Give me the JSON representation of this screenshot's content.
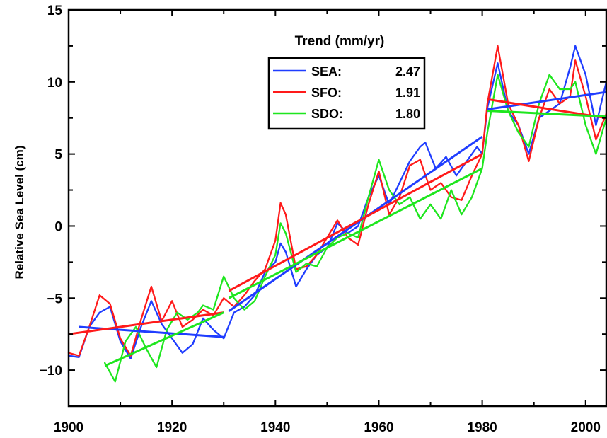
{
  "chart_data": {
    "type": "line",
    "title": "",
    "xlabel": "",
    "ylabel": "Relative Sea Level (cm)",
    "xlim": [
      1900,
      2004
    ],
    "ylim": [
      -12.5,
      15
    ],
    "x_ticks": [
      1900,
      1920,
      1940,
      1960,
      1980,
      2000
    ],
    "y_ticks": [
      -10,
      -5,
      0,
      5,
      10,
      15
    ],
    "y_tick_labels": [
      "−10",
      "−5",
      "0",
      "5",
      "10",
      "15"
    ],
    "grid": false,
    "legend": {
      "title": "Trend  (mm/yr)",
      "placement": "top-center",
      "entries": [
        {
          "name": "SEA:",
          "value": "2.47",
          "color": "#1f3dff"
        },
        {
          "name": "SFO:",
          "value": "1.91",
          "color": "#ff1a1a"
        },
        {
          "name": "SDO:",
          "value": "1.80",
          "color": "#1ee61e"
        }
      ]
    },
    "series": [
      {
        "name": "SEA",
        "color": "#1f3dff",
        "x": [
          1900,
          1902,
          1904,
          1906,
          1908,
          1910,
          1912,
          1914,
          1916,
          1918,
          1920,
          1922,
          1924,
          1926,
          1928,
          1930,
          1932,
          1934,
          1936,
          1938,
          1940,
          1941,
          1942,
          1944,
          1946,
          1948,
          1950,
          1952,
          1954,
          1956,
          1958,
          1960,
          1962,
          1964,
          1966,
          1968,
          1969,
          1971,
          1973,
          1975,
          1977,
          1979,
          1980,
          1981,
          1983,
          1985,
          1987,
          1989,
          1991,
          1993,
          1995,
          1997,
          1998,
          2000,
          2002,
          2004
        ],
        "y": [
          -9.0,
          -9.1,
          -7.0,
          -6.0,
          -5.6,
          -8.0,
          -9.2,
          -7.0,
          -5.2,
          -6.8,
          -7.8,
          -8.8,
          -8.2,
          -6.4,
          -7.2,
          -7.8,
          -6.0,
          -5.6,
          -4.8,
          -3.2,
          -2.5,
          -1.2,
          -1.8,
          -4.2,
          -3.0,
          -2.0,
          -1.5,
          0.2,
          -0.5,
          0.0,
          2.0,
          3.5,
          1.5,
          3.0,
          4.5,
          5.5,
          5.8,
          4.0,
          4.8,
          3.5,
          4.5,
          5.5,
          5.0,
          8.2,
          11.3,
          8.0,
          7.0,
          5.0,
          7.5,
          8.0,
          8.5,
          11.0,
          12.5,
          10.5,
          7.0,
          10.0
        ]
      },
      {
        "name": "SFO",
        "color": "#ff1a1a",
        "x": [
          1900,
          1902,
          1904,
          1906,
          1908,
          1910,
          1912,
          1914,
          1916,
          1918,
          1920,
          1922,
          1924,
          1926,
          1928,
          1930,
          1932,
          1934,
          1936,
          1938,
          1940,
          1941,
          1942,
          1944,
          1946,
          1948,
          1950,
          1952,
          1954,
          1956,
          1958,
          1960,
          1962,
          1964,
          1966,
          1968,
          1970,
          1972,
          1974,
          1976,
          1978,
          1980,
          1981,
          1983,
          1985,
          1987,
          1989,
          1991,
          1993,
          1995,
          1997,
          1998,
          2000,
          2002,
          2004
        ],
        "y": [
          -8.8,
          -9.0,
          -7.0,
          -4.8,
          -5.4,
          -7.8,
          -9.0,
          -6.5,
          -4.2,
          -6.6,
          -5.2,
          -7.0,
          -6.5,
          -5.8,
          -6.2,
          -5.0,
          -5.6,
          -4.8,
          -3.8,
          -3.0,
          -1.0,
          1.6,
          0.8,
          -3.0,
          -2.8,
          -2.0,
          -0.8,
          0.4,
          -0.8,
          -1.3,
          1.5,
          3.8,
          0.8,
          2.0,
          4.2,
          4.6,
          2.5,
          3.0,
          2.0,
          1.8,
          3.5,
          5.0,
          8.5,
          12.5,
          8.5,
          7.0,
          4.5,
          7.5,
          9.5,
          8.5,
          9.0,
          11.5,
          9.0,
          6.0,
          7.8
        ]
      },
      {
        "name": "SDO",
        "color": "#1ee61e",
        "x": [
          1907,
          1909,
          1911,
          1913,
          1915,
          1917,
          1919,
          1921,
          1923,
          1925,
          1926,
          1928,
          1930,
          1932,
          1934,
          1936,
          1938,
          1940,
          1941,
          1942,
          1944,
          1946,
          1948,
          1950,
          1952,
          1954,
          1956,
          1958,
          1960,
          1962,
          1964,
          1966,
          1968,
          1970,
          1972,
          1974,
          1976,
          1978,
          1980,
          1981,
          1983,
          1985,
          1987,
          1989,
          1991,
          1993,
          1995,
          1997,
          1998,
          2000,
          2002,
          2004
        ],
        "y": [
          -9.5,
          -10.8,
          -8.0,
          -7.0,
          -8.5,
          -9.8,
          -7.2,
          -6.0,
          -6.5,
          -6.0,
          -5.5,
          -5.8,
          -3.5,
          -5.0,
          -5.8,
          -5.2,
          -3.5,
          -2.0,
          0.2,
          -0.5,
          -3.2,
          -2.6,
          -2.8,
          -1.5,
          -0.8,
          -0.5,
          -0.8,
          2.0,
          4.6,
          2.5,
          1.5,
          2.0,
          0.5,
          1.5,
          0.5,
          2.5,
          0.8,
          2.0,
          4.0,
          6.5,
          10.5,
          8.0,
          6.5,
          5.5,
          8.5,
          10.5,
          9.5,
          9.5,
          10.0,
          7.0,
          5.0,
          7.5
        ]
      }
    ],
    "trend_lines": [
      {
        "series": "SEA",
        "color": "#1f3dff",
        "segments": [
          [
            1902,
            -7.0,
            1930,
            -7.7
          ],
          [
            1931,
            -5.9,
            1980,
            6.2
          ],
          [
            1981,
            8.1,
            2004,
            9.3
          ]
        ]
      },
      {
        "series": "SFO",
        "color": "#ff1a1a",
        "segments": [
          [
            1900,
            -7.5,
            1930,
            -6.0
          ],
          [
            1931,
            -4.5,
            1980,
            5.0
          ],
          [
            1981,
            8.8,
            2004,
            7.5
          ]
        ]
      },
      {
        "series": "SDO",
        "color": "#1ee61e",
        "segments": [
          [
            1907,
            -9.7,
            1930,
            -6.0
          ],
          [
            1931,
            -5.0,
            1980,
            4.0
          ],
          [
            1981,
            8.0,
            2004,
            7.6
          ]
        ]
      }
    ]
  }
}
